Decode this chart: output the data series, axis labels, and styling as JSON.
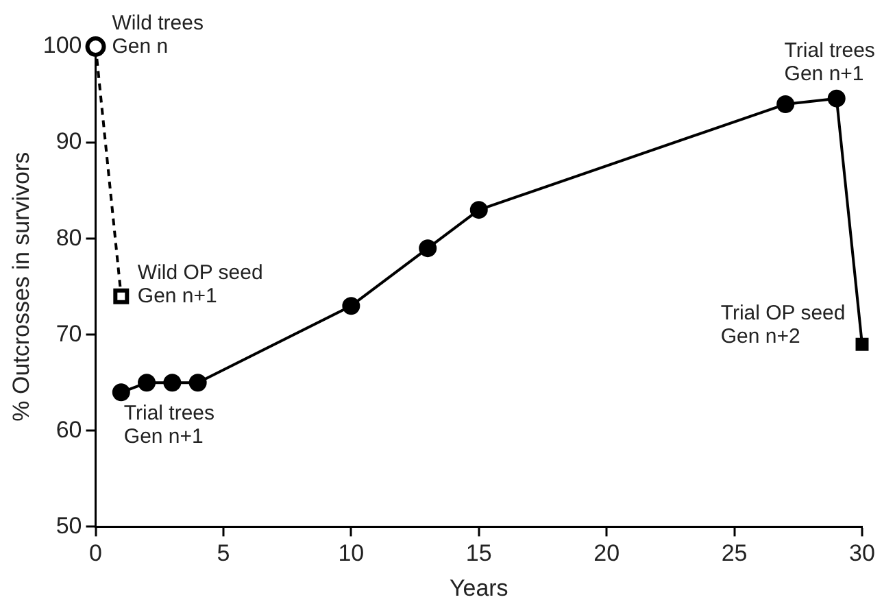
{
  "chart_data": {
    "type": "line",
    "xlabel": "Years",
    "ylabel": "% Outcrosses in survivors",
    "xlim": [
      0,
      30
    ],
    "xticks": [
      0,
      5,
      10,
      15,
      20,
      25,
      30
    ],
    "ylim": [
      50,
      100
    ],
    "yticks": [
      50,
      60,
      70,
      80,
      90,
      100
    ],
    "grid": false,
    "legend": false,
    "series": [
      {
        "color": "#000000",
        "x": [
          0,
          1
        ],
        "values": [
          100,
          74
        ],
        "line_style": "dashed",
        "marker": [
          "circle",
          "square"
        ]
      },
      {
        "color": "#000000",
        "x": [
          1,
          2,
          3,
          4,
          10,
          13,
          15,
          27,
          29,
          30
        ],
        "values": [
          64,
          65,
          65,
          65,
          73,
          79,
          83,
          94,
          94.6,
          69
        ],
        "line_style": "solid",
        "marker": [
          "circle",
          "circle",
          "circle",
          "circle",
          "circle",
          "circle",
          "circle",
          "circle",
          "circle",
          "square"
        ]
      }
    ],
    "annotations": [
      {
        "text": "Wild trees\nGen n",
        "x": 0,
        "y": 100
      },
      {
        "text": "Wild OP seed\nGen n+1",
        "x": 1,
        "y": 74
      },
      {
        "text": "Trial trees\nGen n+1",
        "x": 1,
        "y": 64
      },
      {
        "text": "Trial trees\nGen n+1",
        "x": 29,
        "y": 94.6
      },
      {
        "text": "Trial OP seed\nGen n+2",
        "x": 30,
        "y": 69
      }
    ]
  }
}
